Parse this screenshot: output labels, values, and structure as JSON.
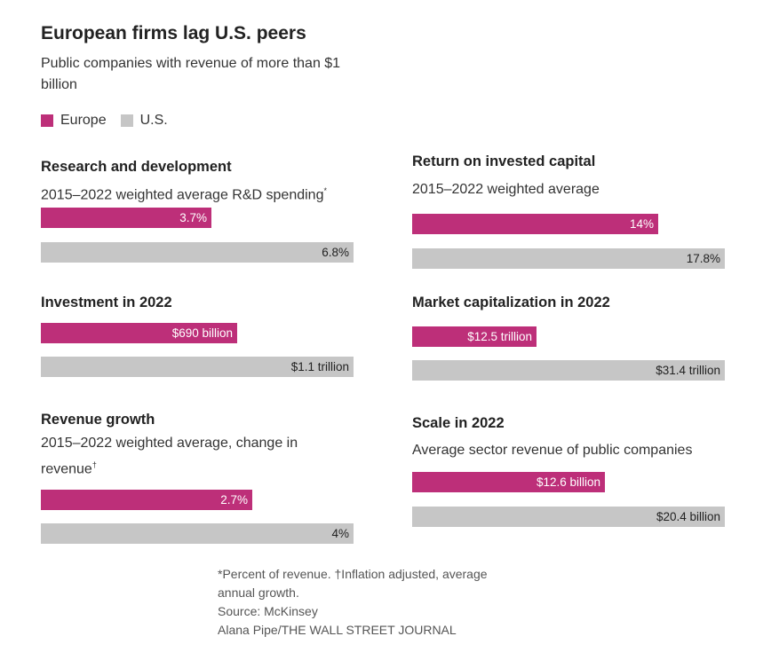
{
  "title": "European firms lag U.S. peers",
  "subtitle": "Public companies with revenue of more than $1 billion",
  "legend": [
    {
      "label": "Europe",
      "color": "#bd2f79"
    },
    {
      "label": "U.S.",
      "color": "#c6c6c6"
    }
  ],
  "chart_data": [
    {
      "type": "bar",
      "title": "Research and development",
      "subtitle": "2015–2022 weighted average R&D spending",
      "subtitle_mark": "*",
      "series": [
        {
          "name": "Europe",
          "value": 3.7,
          "label": "3.7%"
        },
        {
          "name": "U.S.",
          "value": 6.8,
          "label": "6.8%"
        }
      ]
    },
    {
      "type": "bar",
      "title": "Return on invested capital",
      "subtitle": "2015–2022 weighted average",
      "subtitle_mark": "",
      "series": [
        {
          "name": "Europe",
          "value": 14,
          "label": "14%"
        },
        {
          "name": "U.S.",
          "value": 17.8,
          "label": "17.8%"
        }
      ]
    },
    {
      "type": "bar",
      "title": "Investment in 2022",
      "subtitle": "",
      "subtitle_mark": "",
      "series": [
        {
          "name": "Europe",
          "value": 690,
          "label": "$690 billion"
        },
        {
          "name": "U.S.",
          "value": 1100,
          "label": "$1.1 trillion"
        }
      ]
    },
    {
      "type": "bar",
      "title": "Market capitalization in 2022",
      "subtitle": "",
      "subtitle_mark": "",
      "series": [
        {
          "name": "Europe",
          "value": 12.5,
          "label": "$12.5 trillion"
        },
        {
          "name": "U.S.",
          "value": 31.4,
          "label": "$31.4 trillion"
        }
      ]
    },
    {
      "type": "bar",
      "title": "Revenue growth",
      "subtitle": "2015–2022 weighted average, change in revenue",
      "subtitle_mark": "†",
      "series": [
        {
          "name": "Europe",
          "value": 2.7,
          "label": "2.7%"
        },
        {
          "name": "U.S.",
          "value": 4,
          "label": "4%"
        }
      ]
    },
    {
      "type": "bar",
      "title": "Scale in 2022",
      "subtitle": "Average sector revenue of public companies",
      "subtitle_mark": "",
      "series": [
        {
          "name": "Europe",
          "value": 12.6,
          "label": "$12.6 billion"
        },
        {
          "name": "U.S.",
          "value": 20.4,
          "label": "$20.4 billion"
        }
      ]
    }
  ],
  "footnotes": {
    "line1": "*Percent of revenue.   †Inflation adjusted, average",
    "line2": "annual growth.",
    "source": "Source: McKinsey",
    "credit": "Alana Pipe/THE WALL STREET JOURNAL"
  }
}
